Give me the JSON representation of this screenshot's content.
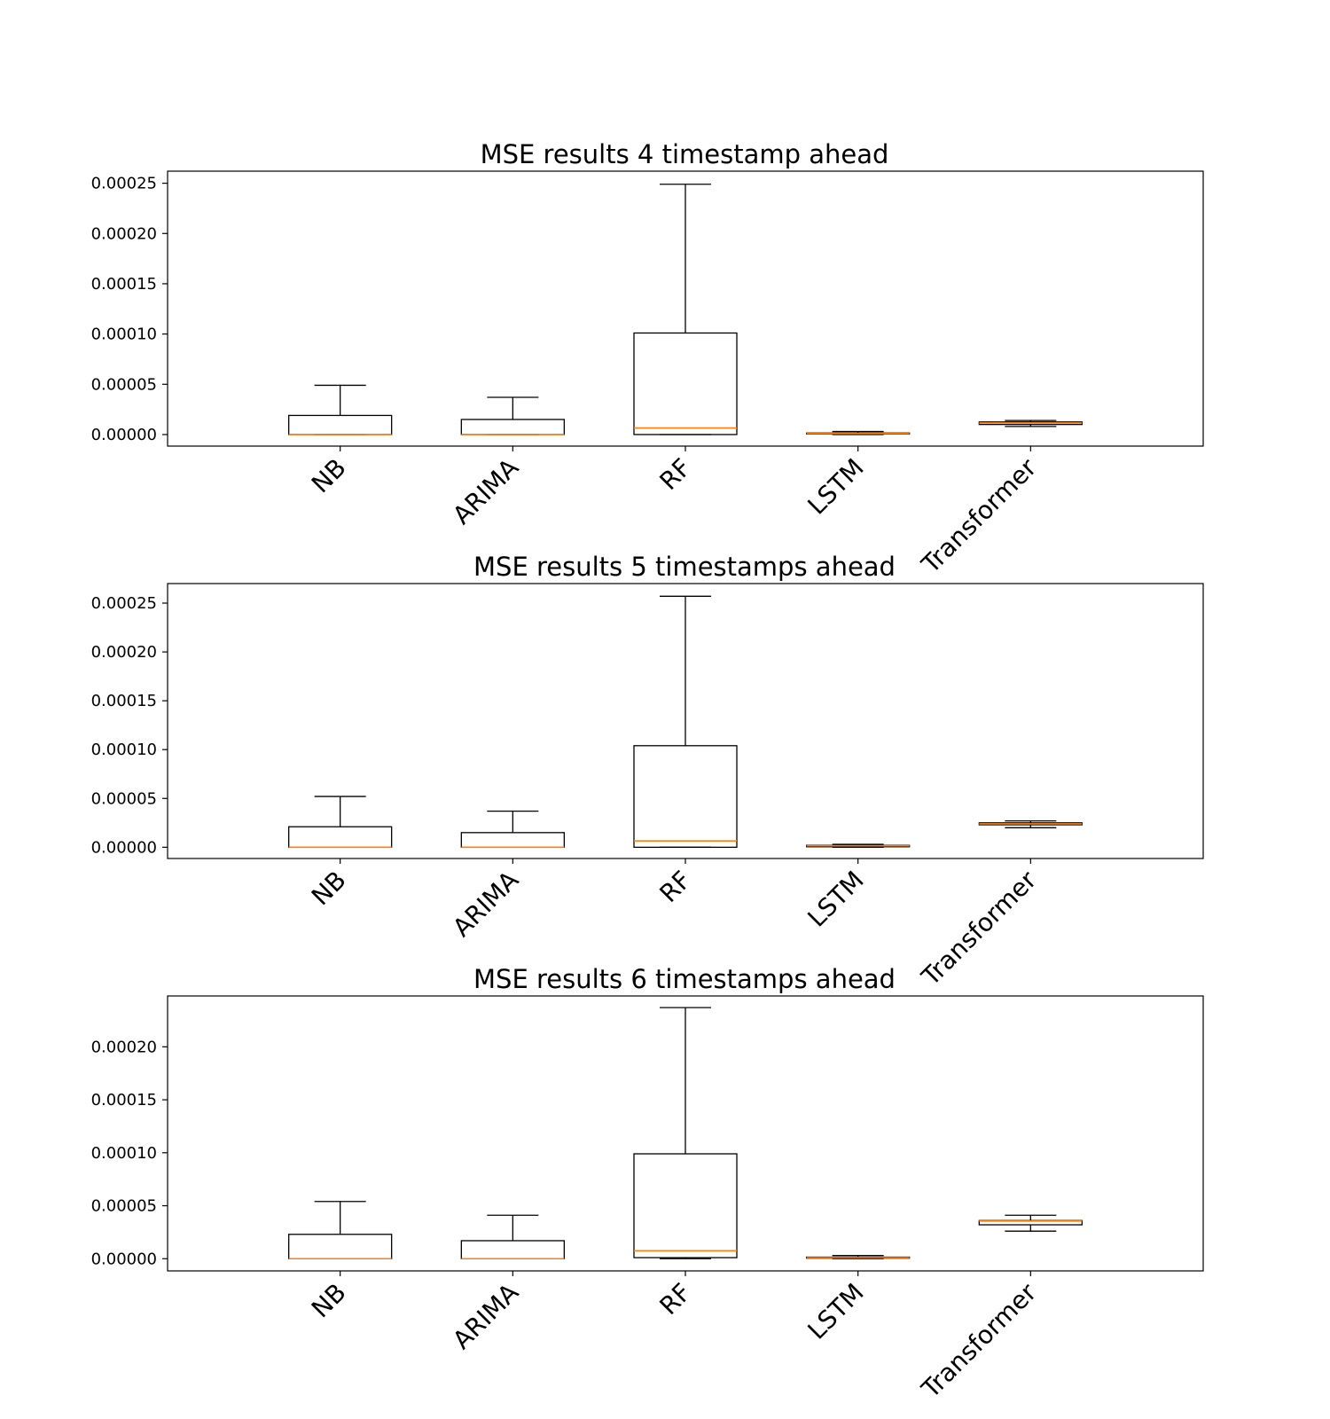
{
  "colors": {
    "box": "#000000",
    "median": "#ff7f0e",
    "background": "#ffffff"
  },
  "chart_data": [
    {
      "type": "box",
      "title": "MSE results 4 timestamp ahead",
      "categories": [
        "NB",
        "ARIMA",
        "RF",
        "LSTM",
        "Transformer"
      ],
      "ylim": [
        -1.15e-05,
        0.000262
      ],
      "yticks": [
        0,
        5e-05,
        0.0001,
        0.00015,
        0.0002,
        0.00025
      ],
      "ytick_labels": [
        "0.00000",
        "0.00005",
        "0.00010",
        "0.00015",
        "0.00020",
        "0.00025"
      ],
      "grid": false,
      "boxes": [
        {
          "whislo": 0,
          "q1": 0,
          "med": 0,
          "q3": 1.9e-05,
          "whishi": 4.9e-05
        },
        {
          "whislo": 0,
          "q1": 0,
          "med": 0,
          "q3": 1.5e-05,
          "whishi": 3.7e-05
        },
        {
          "whislo": 0,
          "q1": 0,
          "med": 6.5e-06,
          "q3": 0.000101,
          "whishi": 0.000249
        },
        {
          "whislo": 0,
          "q1": 5e-07,
          "med": 1e-06,
          "q3": 1.5e-06,
          "whishi": 3e-06
        },
        {
          "whislo": 8e-06,
          "q1": 1e-05,
          "med": 1.15e-05,
          "q3": 1.25e-05,
          "whishi": 1.4e-05
        }
      ]
    },
    {
      "type": "box",
      "title": "MSE results 5 timestamps ahead",
      "categories": [
        "NB",
        "ARIMA",
        "RF",
        "LSTM",
        "Transformer"
      ],
      "ylim": [
        -1.15e-05,
        0.00027
      ],
      "yticks": [
        0,
        5e-05,
        0.0001,
        0.00015,
        0.0002,
        0.00025
      ],
      "ytick_labels": [
        "0.00000",
        "0.00005",
        "0.00010",
        "0.00015",
        "0.00020",
        "0.00025"
      ],
      "grid": false,
      "boxes": [
        {
          "whislo": 0,
          "q1": 0,
          "med": 0,
          "q3": 2.1e-05,
          "whishi": 5.2e-05
        },
        {
          "whislo": 0,
          "q1": 0,
          "med": 0,
          "q3": 1.5e-05,
          "whishi": 3.7e-05
        },
        {
          "whislo": 0,
          "q1": 0,
          "med": 6.5e-06,
          "q3": 0.000104,
          "whishi": 0.000257
        },
        {
          "whislo": 0,
          "q1": 5e-07,
          "med": 1.5e-06,
          "q3": 2e-06,
          "whishi": 3e-06
        },
        {
          "whislo": 2e-05,
          "q1": 2.3e-05,
          "med": 2.4e-05,
          "q3": 2.5e-05,
          "whishi": 2.7e-05
        }
      ]
    },
    {
      "type": "box",
      "title": "MSE results 6 timestamps ahead",
      "categories": [
        "NB",
        "ARIMA",
        "RF",
        "LSTM",
        "Transformer"
      ],
      "ylim": [
        -1.15e-05,
        0.000248
      ],
      "yticks": [
        0,
        5e-05,
        0.0001,
        0.00015,
        0.0002
      ],
      "ytick_labels": [
        "0.00000",
        "0.00005",
        "0.00010",
        "0.00015",
        "0.00020"
      ],
      "grid": false,
      "boxes": [
        {
          "whislo": 0,
          "q1": 0,
          "med": 0,
          "q3": 2.3e-05,
          "whishi": 5.4e-05
        },
        {
          "whislo": 0,
          "q1": 0,
          "med": 0,
          "q3": 1.7e-05,
          "whishi": 4.1e-05
        },
        {
          "whislo": 0,
          "q1": 1e-06,
          "med": 7.5e-06,
          "q3": 9.9e-05,
          "whishi": 0.000237
        },
        {
          "whislo": 0,
          "q1": 5e-07,
          "med": 1e-06,
          "q3": 1.5e-06,
          "whishi": 3e-06
        },
        {
          "whislo": 2.6e-05,
          "q1": 3.2e-05,
          "med": 3.55e-05,
          "q3": 3.6e-05,
          "whishi": 4.1e-05
        }
      ]
    }
  ]
}
